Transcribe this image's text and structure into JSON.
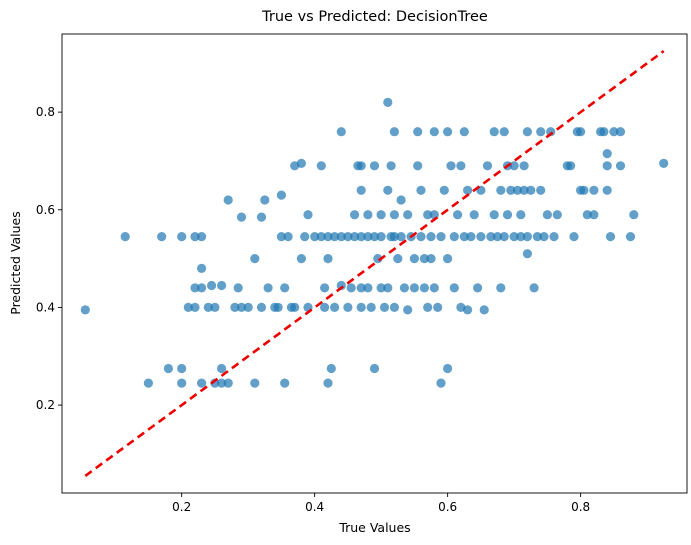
{
  "chart_data": {
    "type": "scatter",
    "title": "True vs Predicted: DecisionTree",
    "xlabel": "True Values",
    "ylabel": "Predicted Values",
    "xlim": [
      0.02,
      0.96
    ],
    "ylim": [
      0.02,
      0.96
    ],
    "x_ticks": [
      0.2,
      0.4,
      0.6,
      0.8
    ],
    "y_ticks": [
      0.2,
      0.4,
      0.6,
      0.8
    ],
    "x_tick_labels": [
      "0.2",
      "0.4",
      "0.6",
      "0.8"
    ],
    "y_tick_labels": [
      "0.2",
      "0.4",
      "0.6",
      "0.8"
    ],
    "grid": false,
    "point_color": "#1f77b4",
    "reference_line": {
      "x": [
        0.055,
        0.925
      ],
      "y": [
        0.055,
        0.925
      ],
      "color": "#ee0000",
      "style": "dashed"
    },
    "points": [
      [
        0.055,
        0.395
      ],
      [
        0.115,
        0.545
      ],
      [
        0.15,
        0.245
      ],
      [
        0.17,
        0.545
      ],
      [
        0.18,
        0.275
      ],
      [
        0.2,
        0.245
      ],
      [
        0.2,
        0.275
      ],
      [
        0.2,
        0.545
      ],
      [
        0.21,
        0.4
      ],
      [
        0.22,
        0.4
      ],
      [
        0.22,
        0.44
      ],
      [
        0.22,
        0.545
      ],
      [
        0.23,
        0.44
      ],
      [
        0.23,
        0.545
      ],
      [
        0.23,
        0.48
      ],
      [
        0.23,
        0.245
      ],
      [
        0.24,
        0.4
      ],
      [
        0.245,
        0.445
      ],
      [
        0.25,
        0.245
      ],
      [
        0.25,
        0.4
      ],
      [
        0.26,
        0.245
      ],
      [
        0.26,
        0.275
      ],
      [
        0.26,
        0.445
      ],
      [
        0.27,
        0.245
      ],
      [
        0.27,
        0.62
      ],
      [
        0.28,
        0.4
      ],
      [
        0.285,
        0.44
      ],
      [
        0.29,
        0.4
      ],
      [
        0.29,
        0.585
      ],
      [
        0.3,
        0.4
      ],
      [
        0.31,
        0.245
      ],
      [
        0.31,
        0.5
      ],
      [
        0.32,
        0.4
      ],
      [
        0.32,
        0.585
      ],
      [
        0.325,
        0.62
      ],
      [
        0.33,
        0.44
      ],
      [
        0.34,
        0.4
      ],
      [
        0.345,
        0.4
      ],
      [
        0.35,
        0.545
      ],
      [
        0.35,
        0.63
      ],
      [
        0.355,
        0.245
      ],
      [
        0.355,
        0.44
      ],
      [
        0.36,
        0.545
      ],
      [
        0.365,
        0.4
      ],
      [
        0.37,
        0.4
      ],
      [
        0.37,
        0.69
      ],
      [
        0.38,
        0.5
      ],
      [
        0.38,
        0.695
      ],
      [
        0.385,
        0.545
      ],
      [
        0.39,
        0.4
      ],
      [
        0.39,
        0.59
      ],
      [
        0.4,
        0.545
      ],
      [
        0.41,
        0.69
      ],
      [
        0.41,
        0.545
      ],
      [
        0.415,
        0.4
      ],
      [
        0.415,
        0.44
      ],
      [
        0.42,
        0.245
      ],
      [
        0.42,
        0.5
      ],
      [
        0.42,
        0.545
      ],
      [
        0.425,
        0.275
      ],
      [
        0.43,
        0.545
      ],
      [
        0.43,
        0.4
      ],
      [
        0.44,
        0.76
      ],
      [
        0.44,
        0.445
      ],
      [
        0.44,
        0.545
      ],
      [
        0.45,
        0.4
      ],
      [
        0.45,
        0.545
      ],
      [
        0.455,
        0.44
      ],
      [
        0.46,
        0.545
      ],
      [
        0.46,
        0.59
      ],
      [
        0.465,
        0.69
      ],
      [
        0.47,
        0.4
      ],
      [
        0.47,
        0.44
      ],
      [
        0.47,
        0.545
      ],
      [
        0.47,
        0.64
      ],
      [
        0.47,
        0.69
      ],
      [
        0.48,
        0.44
      ],
      [
        0.48,
        0.545
      ],
      [
        0.48,
        0.59
      ],
      [
        0.485,
        0.4
      ],
      [
        0.49,
        0.275
      ],
      [
        0.49,
        0.69
      ],
      [
        0.49,
        0.545
      ],
      [
        0.495,
        0.5
      ],
      [
        0.5,
        0.44
      ],
      [
        0.5,
        0.59
      ],
      [
        0.5,
        0.545
      ],
      [
        0.505,
        0.4
      ],
      [
        0.51,
        0.82
      ],
      [
        0.51,
        0.64
      ],
      [
        0.51,
        0.44
      ],
      [
        0.515,
        0.545
      ],
      [
        0.515,
        0.69
      ],
      [
        0.52,
        0.545
      ],
      [
        0.52,
        0.59
      ],
      [
        0.52,
        0.4
      ],
      [
        0.52,
        0.76
      ],
      [
        0.525,
        0.5
      ],
      [
        0.53,
        0.62
      ],
      [
        0.53,
        0.545
      ],
      [
        0.535,
        0.44
      ],
      [
        0.54,
        0.59
      ],
      [
        0.54,
        0.395
      ],
      [
        0.545,
        0.545
      ],
      [
        0.55,
        0.5
      ],
      [
        0.55,
        0.44
      ],
      [
        0.555,
        0.76
      ],
      [
        0.555,
        0.69
      ],
      [
        0.56,
        0.545
      ],
      [
        0.56,
        0.64
      ],
      [
        0.565,
        0.44
      ],
      [
        0.565,
        0.5
      ],
      [
        0.57,
        0.4
      ],
      [
        0.57,
        0.59
      ],
      [
        0.575,
        0.545
      ],
      [
        0.575,
        0.5
      ],
      [
        0.58,
        0.76
      ],
      [
        0.58,
        0.59
      ],
      [
        0.58,
        0.44
      ],
      [
        0.585,
        0.4
      ],
      [
        0.59,
        0.245
      ],
      [
        0.59,
        0.545
      ],
      [
        0.595,
        0.64
      ],
      [
        0.6,
        0.275
      ],
      [
        0.6,
        0.5
      ],
      [
        0.6,
        0.76
      ],
      [
        0.605,
        0.69
      ],
      [
        0.61,
        0.545
      ],
      [
        0.61,
        0.44
      ],
      [
        0.615,
        0.59
      ],
      [
        0.62,
        0.4
      ],
      [
        0.62,
        0.69
      ],
      [
        0.625,
        0.545
      ],
      [
        0.625,
        0.76
      ],
      [
        0.63,
        0.64
      ],
      [
        0.63,
        0.395
      ],
      [
        0.635,
        0.545
      ],
      [
        0.64,
        0.59
      ],
      [
        0.645,
        0.44
      ],
      [
        0.65,
        0.545
      ],
      [
        0.65,
        0.64
      ],
      [
        0.655,
        0.395
      ],
      [
        0.66,
        0.69
      ],
      [
        0.665,
        0.545
      ],
      [
        0.67,
        0.76
      ],
      [
        0.67,
        0.59
      ],
      [
        0.675,
        0.545
      ],
      [
        0.68,
        0.64
      ],
      [
        0.68,
        0.44
      ],
      [
        0.685,
        0.76
      ],
      [
        0.685,
        0.545
      ],
      [
        0.69,
        0.69
      ],
      [
        0.69,
        0.59
      ],
      [
        0.695,
        0.64
      ],
      [
        0.7,
        0.545
      ],
      [
        0.7,
        0.69
      ],
      [
        0.705,
        0.64
      ],
      [
        0.71,
        0.545
      ],
      [
        0.71,
        0.59
      ],
      [
        0.715,
        0.69
      ],
      [
        0.715,
        0.64
      ],
      [
        0.72,
        0.545
      ],
      [
        0.72,
        0.76
      ],
      [
        0.72,
        0.51
      ],
      [
        0.725,
        0.64
      ],
      [
        0.73,
        0.44
      ],
      [
        0.735,
        0.545
      ],
      [
        0.74,
        0.64
      ],
      [
        0.74,
        0.76
      ],
      [
        0.745,
        0.545
      ],
      [
        0.75,
        0.59
      ],
      [
        0.755,
        0.76
      ],
      [
        0.76,
        0.545
      ],
      [
        0.765,
        0.59
      ],
      [
        0.78,
        0.69
      ],
      [
        0.785,
        0.69
      ],
      [
        0.79,
        0.545
      ],
      [
        0.795,
        0.76
      ],
      [
        0.8,
        0.64
      ],
      [
        0.8,
        0.76
      ],
      [
        0.805,
        0.64
      ],
      [
        0.81,
        0.59
      ],
      [
        0.82,
        0.59
      ],
      [
        0.82,
        0.64
      ],
      [
        0.83,
        0.76
      ],
      [
        0.835,
        0.76
      ],
      [
        0.84,
        0.69
      ],
      [
        0.84,
        0.715
      ],
      [
        0.84,
        0.64
      ],
      [
        0.845,
        0.545
      ],
      [
        0.85,
        0.76
      ],
      [
        0.86,
        0.69
      ],
      [
        0.86,
        0.76
      ],
      [
        0.875,
        0.545
      ],
      [
        0.88,
        0.59
      ],
      [
        0.925,
        0.695
      ]
    ]
  }
}
